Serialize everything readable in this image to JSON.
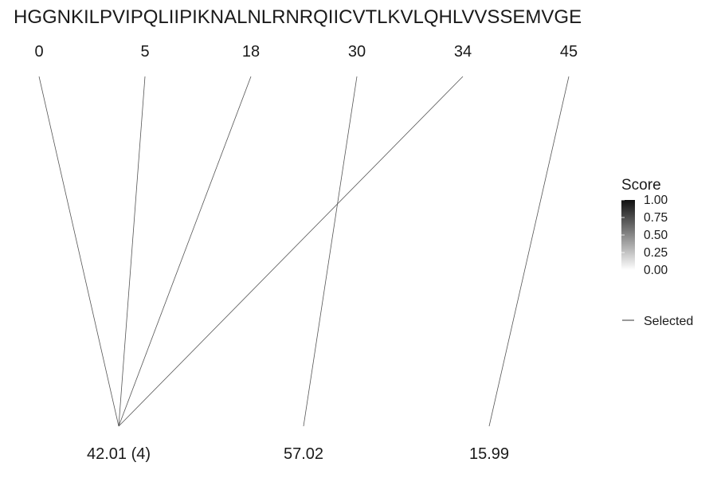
{
  "chart_data": {
    "type": "line",
    "sequence": "HGGNKILPVIPQLIIPIKNALNLRNRQIICVTLKVLQHLVVSSEMVGE",
    "positions": [
      "0",
      "5",
      "18",
      "30",
      "34",
      "45"
    ],
    "masses": [
      "42.01 (4)",
      "57.02",
      "15.99"
    ],
    "links": [
      {
        "position": "0",
        "mass": "42.01 (4)",
        "score": 0.4
      },
      {
        "position": "5",
        "mass": "42.01 (4)",
        "score": 0.4
      },
      {
        "position": "18",
        "mass": "42.01 (4)",
        "score": 0.4
      },
      {
        "position": "34",
        "mass": "42.01 (4)",
        "score": 0.4
      },
      {
        "position": "30",
        "mass": "57.02",
        "score": 0.4
      },
      {
        "position": "45",
        "mass": "15.99",
        "score": 0.4
      }
    ],
    "legend": {
      "title": "Score",
      "ticks": [
        "1.00",
        "0.75",
        "0.50",
        "0.25",
        "0.00"
      ],
      "selected_label": "Selected",
      "gradient_colors": [
        "#111111",
        "#ffffff"
      ]
    }
  }
}
